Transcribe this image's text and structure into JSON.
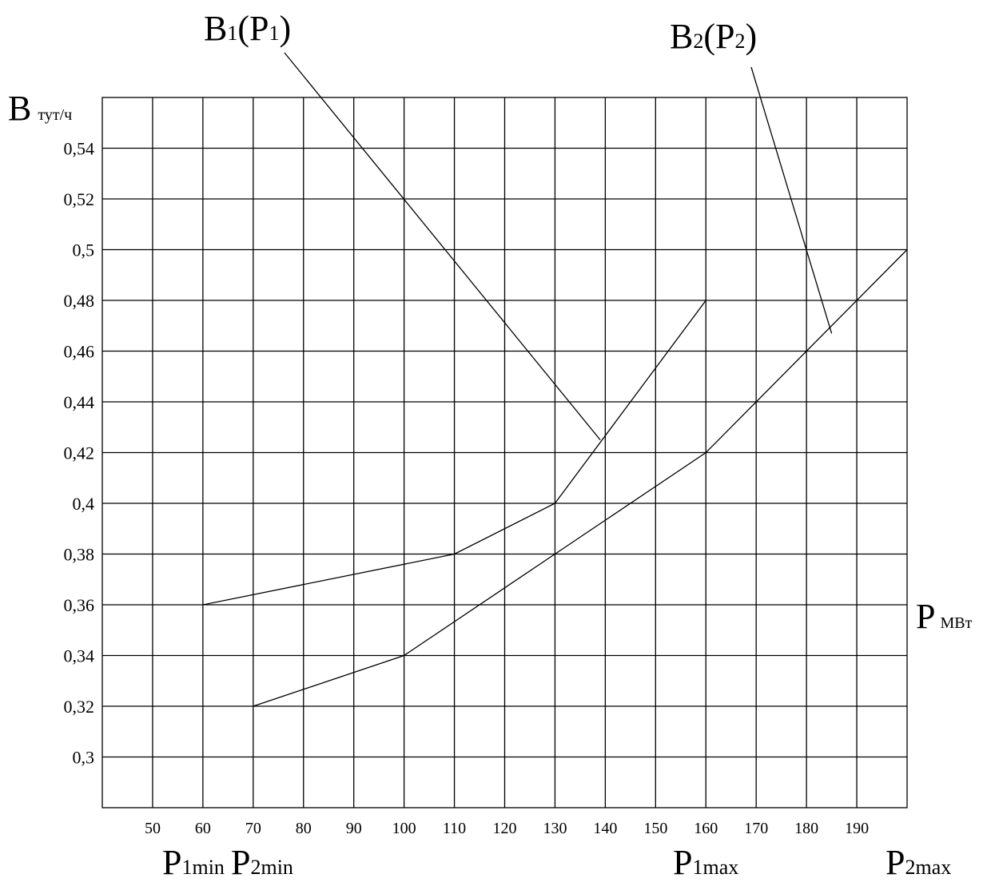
{
  "chart_data": {
    "type": "line",
    "ylabel_main": "B",
    "ylabel_unit": "тут/ч",
    "xlabel_main": "P",
    "xlabel_unit": "МВт",
    "x_ticks": [
      50,
      60,
      70,
      80,
      90,
      100,
      110,
      120,
      130,
      140,
      150,
      160,
      170,
      180,
      190
    ],
    "x_tick_labels": [
      "50",
      "60",
      "70",
      "80",
      "90",
      "100",
      "110",
      "120",
      "130",
      "140",
      "150",
      "160",
      "170",
      "180",
      "190"
    ],
    "xlim": [
      40,
      200
    ],
    "y_ticks": [
      0.3,
      0.32,
      0.34,
      0.36,
      0.38,
      0.4,
      0.42,
      0.44,
      0.46,
      0.48,
      0.5,
      0.52,
      0.54
    ],
    "y_tick_labels": [
      "0,3",
      "0,32",
      "0,34",
      "0,36",
      "0,38",
      "0,4",
      "0,42",
      "0,44",
      "0,46",
      "0,48",
      "0,5",
      "0,52",
      "0,54"
    ],
    "ylim": [
      0.28,
      0.56
    ],
    "grid": true,
    "series": [
      {
        "name": "B1(P1)",
        "x": [
          60,
          110,
          130,
          160
        ],
        "y": [
          0.36,
          0.38,
          0.4,
          0.48
        ]
      },
      {
        "name": "B2(P2)",
        "x": [
          70,
          100,
          130,
          160,
          200
        ],
        "y": [
          0.32,
          0.34,
          0.38,
          0.42,
          0.5
        ]
      }
    ],
    "annotations": [
      {
        "main": "B",
        "sub": "1",
        "mid": "(P",
        "sub2": "1",
        "end": ")",
        "series": 0,
        "point": [
          139,
          0.425
        ]
      },
      {
        "main": "B",
        "sub": "2",
        "mid": "(P",
        "sub2": "2",
        "end": ")",
        "series": 1,
        "point": [
          185,
          0.467
        ]
      }
    ],
    "bottom_labels": [
      {
        "main": "P",
        "sub": "1min"
      },
      {
        "main": "P",
        "sub": "2min"
      },
      {
        "main": "P",
        "sub": "1max"
      },
      {
        "main": "P",
        "sub": "2max"
      }
    ]
  }
}
